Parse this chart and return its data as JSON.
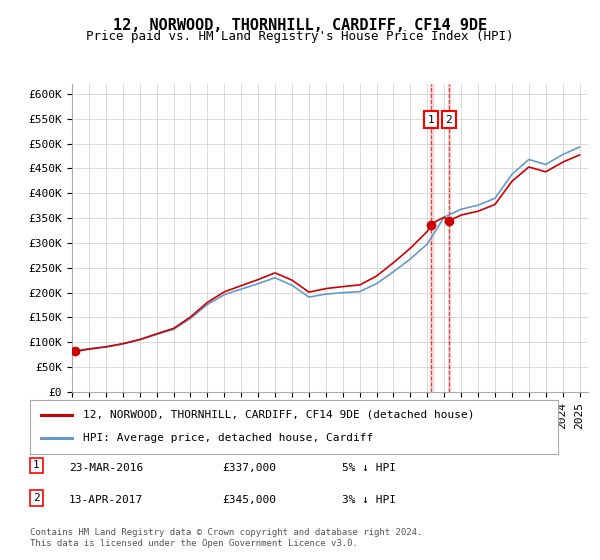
{
  "title": "12, NORWOOD, THORNHILL, CARDIFF, CF14 9DE",
  "subtitle": "Price paid vs. HM Land Registry's House Price Index (HPI)",
  "ylabel_ticks": [
    "£0",
    "£50K",
    "£100K",
    "£150K",
    "£200K",
    "£250K",
    "£300K",
    "£350K",
    "£400K",
    "£450K",
    "£500K",
    "£550K",
    "£600K"
  ],
  "ylim": [
    0,
    620000
  ],
  "yticks": [
    0,
    50000,
    100000,
    150000,
    200000,
    250000,
    300000,
    350000,
    400000,
    450000,
    500000,
    550000,
    600000
  ],
  "hpi_years": [
    1995,
    1996,
    1997,
    1998,
    1999,
    2000,
    2001,
    2002,
    2003,
    2004,
    2005,
    2006,
    2007,
    2008,
    2009,
    2010,
    2011,
    2012,
    2013,
    2014,
    2015,
    2016,
    2017,
    2018,
    2019,
    2020,
    2021,
    2022,
    2023,
    2024,
    2025
  ],
  "hpi_values": [
    82000,
    87000,
    91000,
    97000,
    105000,
    116000,
    126000,
    148000,
    176000,
    196000,
    207000,
    218000,
    230000,
    215000,
    191000,
    197000,
    200000,
    202000,
    218000,
    242000,
    268000,
    298000,
    352000,
    368000,
    376000,
    390000,
    438000,
    468000,
    458000,
    478000,
    493000
  ],
  "property_sales": [
    {
      "year": 1995.2,
      "price": 82000
    },
    {
      "year": 2016.23,
      "price": 337000
    },
    {
      "year": 2017.28,
      "price": 345000
    }
  ],
  "sale_annotations": [
    {
      "label": "1",
      "year": 2016.23,
      "price": 337000,
      "date": "23-MAR-2016",
      "amount": "£337,000",
      "pct": "5% ↓ HPI"
    },
    {
      "label": "2",
      "year": 2017.28,
      "price": 345000,
      "date": "13-APR-2017",
      "amount": "£345,000",
      "pct": "3% ↓ HPI"
    }
  ],
  "legend_items": [
    {
      "label": "12, NORWOOD, THORNHILL, CARDIFF, CF14 9DE (detached house)",
      "color": "#cc0000"
    },
    {
      "label": "HPI: Average price, detached house, Cardiff",
      "color": "#6699cc"
    }
  ],
  "footer": "Contains HM Land Registry data © Crown copyright and database right 2024.\nThis data is licensed under the Open Government Licence v3.0.",
  "bg_color": "#ffffff",
  "grid_color": "#cccccc",
  "title_fontsize": 11,
  "subtitle_fontsize": 9,
  "tick_fontsize": 8
}
